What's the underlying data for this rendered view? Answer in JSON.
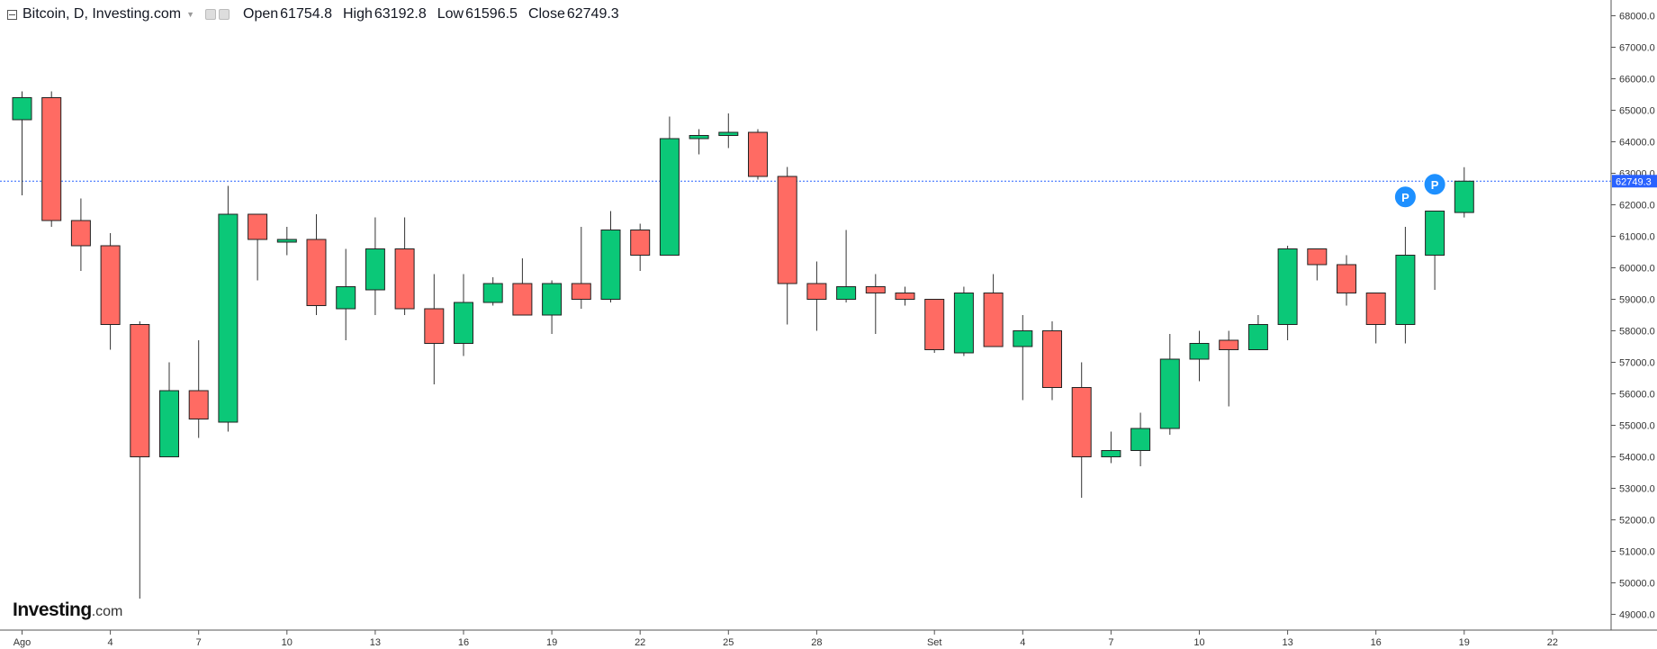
{
  "header": {
    "title": "Bitcoin, D, Investing.com",
    "open_label": "Open",
    "open_value": "61754.8",
    "high_label": "High",
    "high_value": "63192.8",
    "low_label": "Low",
    "low_value": "61596.5",
    "close_label": "Close",
    "close_value": "62749.3"
  },
  "logo": {
    "brand": "Investing",
    "suffix": ".com"
  },
  "colors": {
    "up": "#0bc878",
    "down": "#ff6b63",
    "last_price_line": "#2962ff",
    "last_price_tag": "#2962ff",
    "marker": "#1e90ff"
  },
  "chart_data": {
    "type": "candlestick",
    "title": "Bitcoin, D, Investing.com",
    "y_range": [
      48500,
      68500
    ],
    "y_ticks": [
      "49000.0",
      "50000.0",
      "51000.0",
      "52000.0",
      "53000.0",
      "54000.0",
      "55000.0",
      "56000.0",
      "57000.0",
      "58000.0",
      "59000.0",
      "60000.0",
      "61000.0",
      "62000.0",
      "63000.0",
      "64000.0",
      "65000.0",
      "66000.0",
      "67000.0",
      "68000.0"
    ],
    "x_ticks": [
      {
        "label": "Ago",
        "index": 0
      },
      {
        "label": "4",
        "index": 3
      },
      {
        "label": "7",
        "index": 6
      },
      {
        "label": "10",
        "index": 9
      },
      {
        "label": "13",
        "index": 12
      },
      {
        "label": "16",
        "index": 15
      },
      {
        "label": "19",
        "index": 18
      },
      {
        "label": "22",
        "index": 21
      },
      {
        "label": "25",
        "index": 24
      },
      {
        "label": "28",
        "index": 27
      },
      {
        "label": "Set",
        "index": 31
      },
      {
        "label": "4",
        "index": 34
      },
      {
        "label": "7",
        "index": 37
      },
      {
        "label": "10",
        "index": 40
      },
      {
        "label": "13",
        "index": 43
      },
      {
        "label": "16",
        "index": 46
      },
      {
        "label": "19",
        "index": 49
      },
      {
        "label": "22",
        "index": 52
      }
    ],
    "last_price": 62749.3,
    "last_price_label": "62749.3",
    "marker_label": "P",
    "markers": [
      {
        "index": 47,
        "price": 62250
      },
      {
        "index": 48,
        "price": 62650
      }
    ],
    "candles": [
      {
        "i": 0,
        "o": 64700,
        "h": 65600,
        "l": 62300,
        "c": 65400
      },
      {
        "i": 1,
        "o": 65400,
        "h": 65600,
        "l": 61300,
        "c": 61500
      },
      {
        "i": 2,
        "o": 61500,
        "h": 62200,
        "l": 59900,
        "c": 60700
      },
      {
        "i": 3,
        "o": 60700,
        "h": 61100,
        "l": 57400,
        "c": 58200
      },
      {
        "i": 4,
        "o": 58200,
        "h": 58300,
        "l": 49500,
        "c": 54000
      },
      {
        "i": 5,
        "o": 54000,
        "h": 57000,
        "l": 54000,
        "c": 56100
      },
      {
        "i": 6,
        "o": 56100,
        "h": 57700,
        "l": 54600,
        "c": 55200
      },
      {
        "i": 7,
        "o": 55100,
        "h": 62600,
        "l": 54800,
        "c": 61700
      },
      {
        "i": 8,
        "o": 61700,
        "h": 61700,
        "l": 59600,
        "c": 60900
      },
      {
        "i": 9,
        "o": 60900,
        "h": 61300,
        "l": 60400,
        "c": 60900
      },
      {
        "i": 10,
        "o": 60900,
        "h": 61700,
        "l": 58500,
        "c": 58800
      },
      {
        "i": 11,
        "o": 58700,
        "h": 60600,
        "l": 57700,
        "c": 59400
      },
      {
        "i": 12,
        "o": 59300,
        "h": 61600,
        "l": 58500,
        "c": 60600
      },
      {
        "i": 13,
        "o": 60600,
        "h": 61600,
        "l": 58500,
        "c": 58700
      },
      {
        "i": 14,
        "o": 58700,
        "h": 59800,
        "l": 56300,
        "c": 57600
      },
      {
        "i": 15,
        "o": 57600,
        "h": 59800,
        "l": 57200,
        "c": 58900
      },
      {
        "i": 16,
        "o": 58900,
        "h": 59700,
        "l": 58800,
        "c": 59500
      },
      {
        "i": 17,
        "o": 59500,
        "h": 60300,
        "l": 58500,
        "c": 58500
      },
      {
        "i": 18,
        "o": 58500,
        "h": 59600,
        "l": 57900,
        "c": 59500
      },
      {
        "i": 19,
        "o": 59500,
        "h": 61300,
        "l": 58700,
        "c": 59000
      },
      {
        "i": 20,
        "o": 59000,
        "h": 61800,
        "l": 58900,
        "c": 61200
      },
      {
        "i": 21,
        "o": 61200,
        "h": 61400,
        "l": 59900,
        "c": 60400
      },
      {
        "i": 22,
        "o": 60400,
        "h": 64800,
        "l": 60400,
        "c": 64100
      },
      {
        "i": 23,
        "o": 64100,
        "h": 64400,
        "l": 63600,
        "c": 64200
      },
      {
        "i": 24,
        "o": 64200,
        "h": 64900,
        "l": 63800,
        "c": 64300
      },
      {
        "i": 25,
        "o": 64300,
        "h": 64400,
        "l": 62800,
        "c": 62900
      },
      {
        "i": 26,
        "o": 62900,
        "h": 63200,
        "l": 58200,
        "c": 59500
      },
      {
        "i": 27,
        "o": 59500,
        "h": 60200,
        "l": 58000,
        "c": 59000
      },
      {
        "i": 28,
        "o": 59000,
        "h": 61200,
        "l": 58900,
        "c": 59400
      },
      {
        "i": 29,
        "o": 59400,
        "h": 59800,
        "l": 57900,
        "c": 59200
      },
      {
        "i": 30,
        "o": 59200,
        "h": 59400,
        "l": 58800,
        "c": 59000
      },
      {
        "i": 31,
        "o": 59000,
        "h": 59000,
        "l": 57300,
        "c": 57400
      },
      {
        "i": 32,
        "o": 57300,
        "h": 59400,
        "l": 57200,
        "c": 59200
      },
      {
        "i": 33,
        "o": 59200,
        "h": 59800,
        "l": 57500,
        "c": 57500
      },
      {
        "i": 34,
        "o": 57500,
        "h": 58500,
        "l": 55800,
        "c": 58000
      },
      {
        "i": 35,
        "o": 58000,
        "h": 58300,
        "l": 55800,
        "c": 56200
      },
      {
        "i": 36,
        "o": 56200,
        "h": 57000,
        "l": 52700,
        "c": 54000
      },
      {
        "i": 37,
        "o": 54000,
        "h": 54800,
        "l": 53800,
        "c": 54200
      },
      {
        "i": 38,
        "o": 54200,
        "h": 55400,
        "l": 53700,
        "c": 54900
      },
      {
        "i": 39,
        "o": 54900,
        "h": 57900,
        "l": 54700,
        "c": 57100
      },
      {
        "i": 40,
        "o": 57100,
        "h": 58000,
        "l": 56400,
        "c": 57600
      },
      {
        "i": 41,
        "o": 57700,
        "h": 58000,
        "l": 55600,
        "c": 57400
      },
      {
        "i": 42,
        "o": 57400,
        "h": 58500,
        "l": 57400,
        "c": 58200
      },
      {
        "i": 43,
        "o": 58200,
        "h": 60700,
        "l": 57700,
        "c": 60600
      },
      {
        "i": 44,
        "o": 60600,
        "h": 60600,
        "l": 59600,
        "c": 60100
      },
      {
        "i": 45,
        "o": 60100,
        "h": 60400,
        "l": 58800,
        "c": 59200
      },
      {
        "i": 46,
        "o": 59200,
        "h": 59200,
        "l": 57600,
        "c": 58200
      },
      {
        "i": 47,
        "o": 58200,
        "h": 61300,
        "l": 57600,
        "c": 60400
      },
      {
        "i": 48,
        "o": 60400,
        "h": 61800,
        "l": 59300,
        "c": 61800
      },
      {
        "i": 49,
        "o": 61754.8,
        "h": 63192.8,
        "l": 61596.5,
        "c": 62749.3
      }
    ]
  }
}
